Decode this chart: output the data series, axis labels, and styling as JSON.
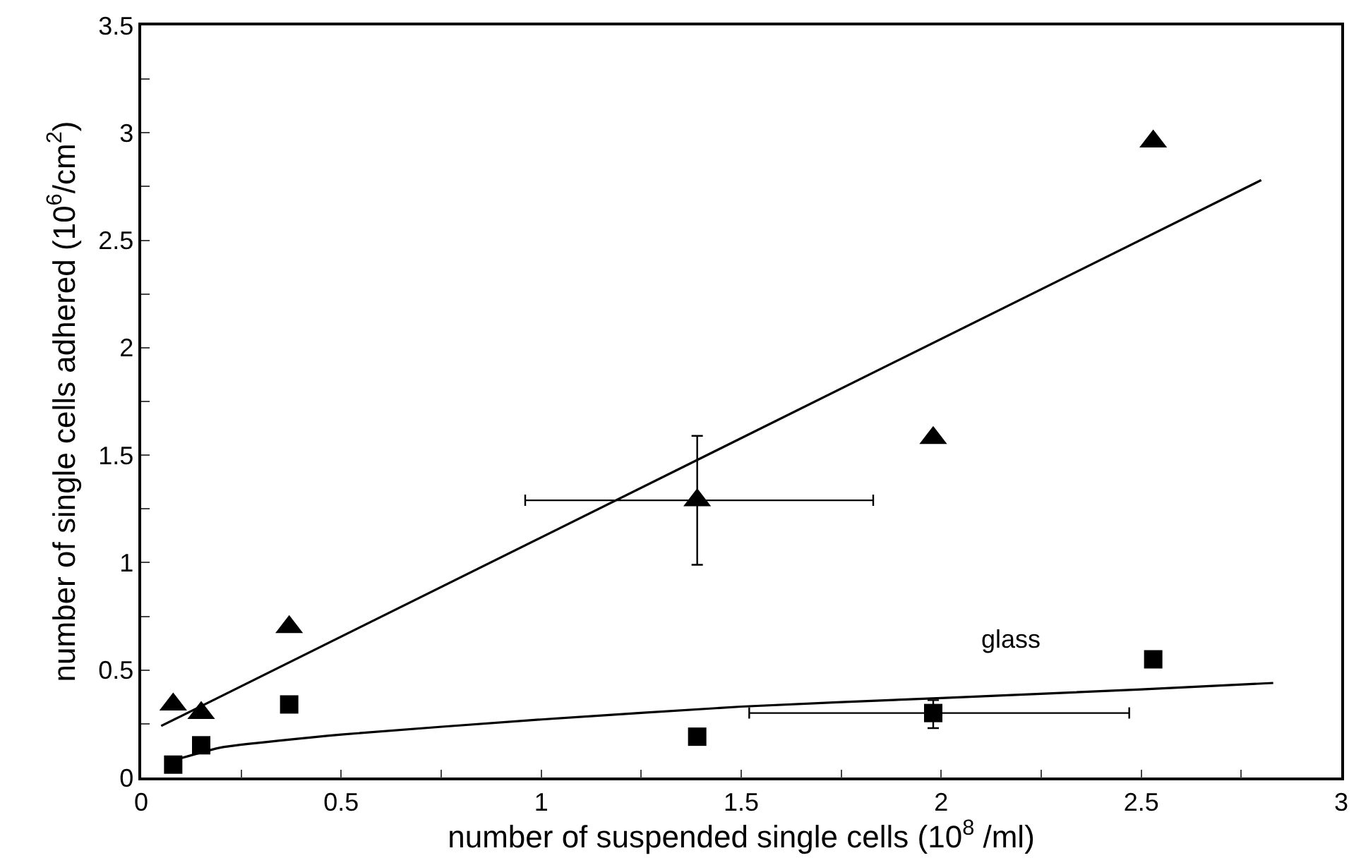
{
  "chart_data": {
    "type": "scatter",
    "xlabel": "number of suspended single cells (10$^{8}$ /ml)",
    "ylabel": "number of single cells adhered (10$^{6}$/cm$^{2}$)",
    "xlim": [
      0,
      3
    ],
    "xticks": [
      0,
      {
        "value": 0.25,
        "label": null
      },
      0.5,
      {
        "value": 0.75,
        "label": null
      },
      1,
      {
        "value": 1.25,
        "label": null
      },
      1.5,
      {
        "value": 1.75,
        "label": null
      },
      2,
      {
        "value": 2.25,
        "label": null
      },
      2.5,
      {
        "value": 2.75,
        "label": null
      },
      3
    ],
    "ylim": [
      0,
      3.5
    ],
    "yticks": [
      0,
      {
        "value": 0.25,
        "label": null
      },
      0.5,
      {
        "value": 0.75,
        "label": null
      },
      1,
      {
        "value": 1.25,
        "label": null
      },
      1.5,
      {
        "value": 1.75,
        "label": null
      },
      2,
      {
        "value": 2.25,
        "label": null
      },
      2.5,
      {
        "value": 2.75,
        "label": null
      },
      3,
      {
        "value": 3.25,
        "label": null
      },
      3.5
    ],
    "grid": false,
    "legend": false,
    "series": [
      {
        "marker": "triangle",
        "color": "#000000",
        "x": [
          0.08,
          0.15,
          0.37,
          1.39,
          1.98,
          2.53
        ],
        "values": [
          0.34,
          0.3,
          0.7,
          1.29,
          1.58,
          2.96
        ],
        "errors": [
          null,
          null,
          null,
          0.3,
          null,
          null
        ],
        "xerrors": [
          null,
          null,
          null,
          [
            0.96,
            1.83
          ],
          null,
          null
        ]
      },
      {
        "name": "glass",
        "marker": "square",
        "color": "#000000",
        "x": [
          0.08,
          0.15,
          0.37,
          1.39,
          1.98,
          2.53
        ],
        "values": [
          0.06,
          0.15,
          0.34,
          0.19,
          0.3,
          0.55
        ],
        "errors": [
          null,
          null,
          null,
          null,
          [
            0.23,
            0.36
          ],
          null
        ],
        "xerrors": [
          null,
          null,
          null,
          null,
          [
            1.52,
            2.47
          ],
          null
        ]
      },
      {
        "type": "line",
        "marker": "none",
        "color": "#000000",
        "x": [
          0.05,
          2.8
        ],
        "values": [
          0.24,
          2.78
        ]
      },
      {
        "type": "line",
        "marker": "none",
        "color": "#000000",
        "x": [
          0.1,
          0.2,
          0.5,
          1.0,
          1.5,
          2.0,
          2.5,
          2.83
        ],
        "values": [
          0.09,
          0.14,
          0.2,
          0.27,
          0.33,
          0.37,
          0.41,
          0.44
        ]
      }
    ]
  }
}
